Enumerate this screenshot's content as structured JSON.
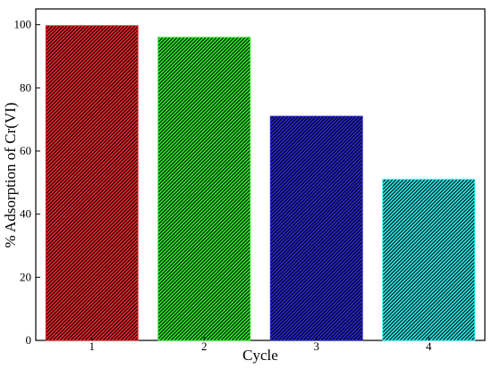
{
  "chart_data": {
    "type": "bar",
    "categories": [
      "1",
      "2",
      "3",
      "4"
    ],
    "values": [
      99.7,
      96.0,
      71.0,
      51.0
    ],
    "colors": [
      "#e8262a",
      "#2ae826",
      "#2626d0",
      "#26e8e8"
    ],
    "pattern": "diagonal-hatch",
    "xlabel": "Cycle",
    "ylabel": "% Adsorption of Cr(VI)",
    "ylim": [
      0,
      105
    ],
    "yticks": [
      0,
      20,
      40,
      60,
      80,
      100
    ],
    "grid": false,
    "legend": "none"
  }
}
